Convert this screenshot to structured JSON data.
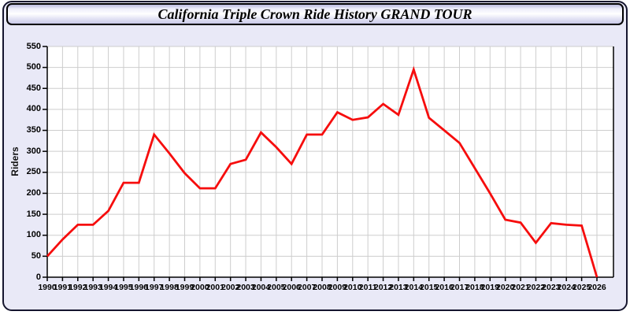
{
  "header": {
    "title": "California Triple Crown Ride History GRAND TOUR"
  },
  "chart_data": {
    "type": "line",
    "title": "California Triple Crown Ride History GRAND TOUR",
    "xlabel": "",
    "ylabel": "Riders",
    "x": [
      1990,
      1991,
      1992,
      1993,
      1994,
      1995,
      1996,
      1997,
      1998,
      1999,
      2000,
      2001,
      2002,
      2003,
      2004,
      2005,
      2006,
      2007,
      2008,
      2009,
      2010,
      2011,
      2012,
      2013,
      2014,
      2015,
      2016,
      2017,
      2018,
      2019,
      2020,
      2021,
      2022,
      2023,
      2024,
      2025,
      2026
    ],
    "values": [
      50,
      90,
      125,
      125,
      158,
      225,
      225,
      340,
      295,
      248,
      212,
      212,
      270,
      280,
      345,
      310,
      270,
      340,
      340,
      393,
      375,
      381,
      413,
      387,
      495,
      380,
      350,
      320,
      260,
      200,
      137,
      130,
      82,
      129,
      125,
      123,
      0
    ],
    "ylim": [
      0,
      550
    ],
    "ytick_step": 50,
    "grid": true,
    "legend": "none",
    "colors": {
      "line": "#f60d0d",
      "plot_bg": "#ffffff",
      "grid": "#cdcdcd",
      "axis": "#000000",
      "page_bg": "#e9e9f7",
      "border": "#15152e"
    }
  }
}
